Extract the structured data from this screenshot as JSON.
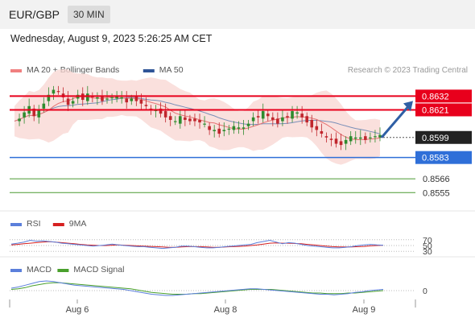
{
  "header": {
    "pair": "EUR/GBP",
    "timeframe": "30 MIN"
  },
  "datetime": "Wednesday, August 9, 2023 5:26:25 AM CET",
  "colors": {
    "bull": "#2e8b2e",
    "bear": "#c0262d",
    "band": "#f8d5d2",
    "ma20": "#e57373",
    "ma50": "#7a8fb8",
    "resistance": "#e8001c",
    "pivot": "#2f6fd8",
    "support": "#4a9a30",
    "arrow": "#2f5fa5",
    "rsi": "#5b7fdb",
    "rsi_ma": "#d62020",
    "macd": "#5b7fdb",
    "macd_signal": "#4aa02c",
    "grid_line": "#bbbbbb",
    "text": "#555555"
  },
  "legend": {
    "main": [
      {
        "label": "MA 20 + Bollinger Bands",
        "color": "#f08080"
      },
      {
        "label": "MA 50",
        "color": "#2f5597"
      }
    ],
    "rsi": [
      {
        "label": "RSI",
        "color": "#5b7fdb"
      },
      {
        "label": "9MA",
        "color": "#d62020"
      }
    ],
    "macd": [
      {
        "label": "MACD",
        "color": "#5b7fdb"
      },
      {
        "label": "MACD Signal",
        "color": "#4aa02c"
      }
    ]
  },
  "copyright": "Research © 2023 Trading Central",
  "chart_data": {
    "type": "candlestick",
    "price_range": [
      0.8543,
      0.8638
    ],
    "last_price": 0.8599,
    "levels": [
      {
        "value": 0.8632,
        "label": "0.8632",
        "kind": "resistance"
      },
      {
        "value": 0.8621,
        "label": "0.8621",
        "kind": "resistance"
      },
      {
        "value": 0.8583,
        "label": "0.8583",
        "kind": "pivot"
      },
      {
        "value": 0.8566,
        "label": "0.8566",
        "kind": "support"
      },
      {
        "value": 0.8555,
        "label": "0.8555",
        "kind": "support"
      }
    ],
    "x_ticks": [
      "Aug 6",
      "Aug 8",
      "Aug 9"
    ],
    "rsi_levels": [
      70,
      50,
      30
    ],
    "macd_levels": [
      0
    ],
    "path_points": [
      0.8612,
      0.8615,
      0.8618,
      0.8622,
      0.8615,
      0.8622,
      0.8628,
      0.8634,
      0.8636,
      0.8634,
      0.863,
      0.8626,
      0.863,
      0.8634,
      0.8628,
      0.8632,
      0.863,
      0.8632,
      0.863,
      0.8631,
      0.863,
      0.863,
      0.863,
      0.8628,
      0.8632,
      0.8629,
      0.8625,
      0.8622,
      0.862,
      0.8622,
      0.862,
      0.8616,
      0.8612,
      0.861,
      0.8615,
      0.8614,
      0.8614,
      0.8613,
      0.861,
      0.8608,
      0.8604,
      0.8606,
      0.8604,
      0.8606,
      0.8605,
      0.8606,
      0.8606,
      0.8608,
      0.8612,
      0.8616,
      0.8614,
      0.8618,
      0.8615,
      0.8614,
      0.8612,
      0.8616,
      0.8614,
      0.8618,
      0.8618,
      0.8616,
      0.8613,
      0.8608,
      0.8604,
      0.86,
      0.8598,
      0.8598,
      0.8596,
      0.8594,
      0.8596,
      0.8598,
      0.8598,
      0.86,
      0.8599,
      0.86,
      0.8599,
      0.8599
    ],
    "rsi_points": [
      55,
      58,
      62,
      68,
      65,
      66,
      64,
      62,
      58,
      56,
      54,
      52,
      50,
      48,
      50,
      52,
      55,
      52,
      50,
      48,
      46,
      46,
      44,
      42,
      40,
      42,
      44,
      48,
      48,
      46,
      44,
      42,
      42,
      44,
      46,
      48,
      50,
      52,
      54,
      60,
      64,
      68,
      62,
      56,
      60,
      58,
      54,
      50,
      48,
      46,
      44,
      42,
      42,
      44,
      46,
      50,
      52,
      54,
      52,
      51
    ],
    "rsi_ma_points": [
      52,
      54,
      56,
      58,
      60,
      62,
      63,
      62,
      60,
      58,
      56,
      54,
      52,
      51,
      50,
      50,
      51,
      52,
      51,
      50,
      49,
      48,
      47,
      46,
      45,
      44,
      44,
      45,
      46,
      46,
      46,
      45,
      44,
      44,
      45,
      46,
      47,
      48,
      50,
      52,
      55,
      58,
      59,
      58,
      58,
      57,
      56,
      54,
      52,
      50,
      48,
      46,
      45,
      45,
      45,
      46,
      47,
      49,
      50,
      51
    ],
    "macd_points": [
      4,
      6,
      9,
      12,
      15,
      16,
      15,
      13,
      11,
      9,
      8,
      7,
      6,
      5,
      4,
      3,
      2,
      0,
      -2,
      -4,
      -6,
      -7,
      -8,
      -8,
      -7,
      -6,
      -5,
      -4,
      -3,
      -2,
      -1,
      0,
      1,
      2,
      3,
      3,
      2,
      1,
      0,
      -1,
      -2,
      -3,
      -4,
      -5,
      -6,
      -6,
      -7,
      -6,
      -5,
      -3,
      -2,
      0,
      1,
      2
    ],
    "macd_signal_points": [
      2,
      3,
      5,
      8,
      10,
      12,
      13,
      13,
      12,
      11,
      10,
      9,
      8,
      7,
      6,
      5,
      4,
      3,
      1,
      -1,
      -3,
      -4,
      -5,
      -6,
      -6,
      -6,
      -5,
      -5,
      -4,
      -3,
      -2,
      -1,
      0,
      1,
      2,
      2,
      2,
      2,
      1,
      0,
      -1,
      -2,
      -3,
      -4,
      -4,
      -5,
      -5,
      -5,
      -4,
      -4,
      -3,
      -2,
      -1,
      0
    ]
  }
}
